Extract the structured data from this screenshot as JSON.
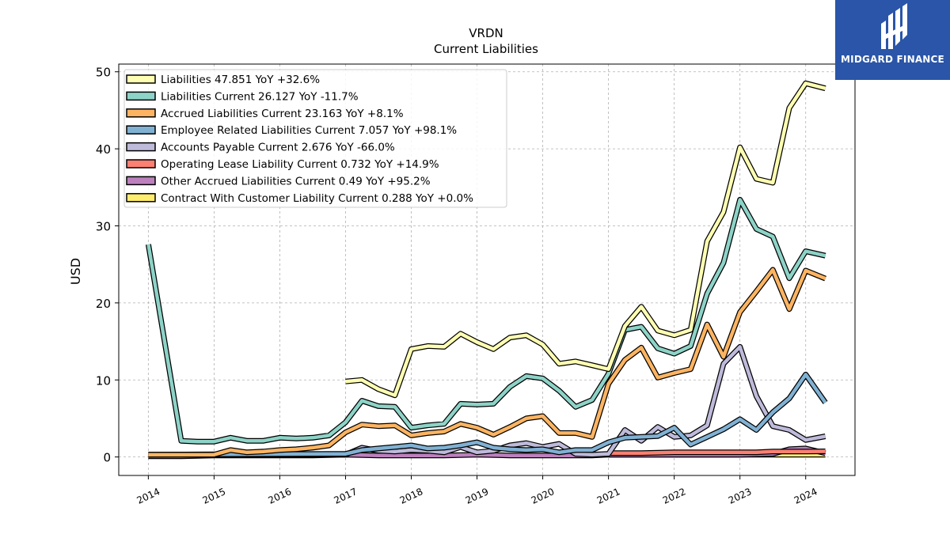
{
  "chart_data": {
    "type": "line",
    "title": "VRDN",
    "subtitle": "Current  Liabilities",
    "ylabel": "USD",
    "xlim": [
      2013.55,
      2024.75
    ],
    "ylim": [
      -2.4,
      51
    ],
    "yticks": [
      0,
      10,
      20,
      30,
      40,
      50
    ],
    "xticks": [
      "2014",
      "2015",
      "2016",
      "2017",
      "2018",
      "2019",
      "2020",
      "2021",
      "2022",
      "2023",
      "2024"
    ],
    "grid": true,
    "legend_position": "top-left",
    "series": [
      {
        "name": "Liabilities",
        "legend": "Liabilities  47.851 YoY +32.6%",
        "color": "#ffffb3",
        "points": [
          [
            2017.0,
            9.8
          ],
          [
            2017.25,
            10.0
          ],
          [
            2017.5,
            8.8
          ],
          [
            2017.75,
            8.0
          ],
          [
            2018.0,
            14.0
          ],
          [
            2018.25,
            14.4
          ],
          [
            2018.5,
            14.3
          ],
          [
            2018.75,
            16.0
          ],
          [
            2019.0,
            14.9
          ],
          [
            2019.25,
            14.0
          ],
          [
            2019.5,
            15.5
          ],
          [
            2019.75,
            15.8
          ],
          [
            2020.0,
            14.6
          ],
          [
            2020.25,
            12.1
          ],
          [
            2020.5,
            12.4
          ],
          [
            2020.75,
            11.9
          ],
          [
            2021.0,
            11.4
          ],
          [
            2021.25,
            17.0
          ],
          [
            2021.5,
            19.5
          ],
          [
            2021.75,
            16.4
          ],
          [
            2022.0,
            15.8
          ],
          [
            2022.25,
            16.5
          ],
          [
            2022.5,
            28.0
          ],
          [
            2022.75,
            31.8
          ],
          [
            2023.0,
            40.2
          ],
          [
            2023.25,
            36.1
          ],
          [
            2023.5,
            35.6
          ],
          [
            2023.75,
            45.3
          ],
          [
            2024.0,
            48.5
          ],
          [
            2024.3,
            47.85
          ]
        ]
      },
      {
        "name": "Liabilities Current",
        "legend": "Liabilities Current  26.127 YoY -11.7%",
        "color": "#8dd3c7",
        "points": [
          [
            2014.0,
            27.6
          ],
          [
            2014.5,
            2.1
          ],
          [
            2014.75,
            2.0
          ],
          [
            2015.0,
            2.0
          ],
          [
            2015.25,
            2.5
          ],
          [
            2015.5,
            2.1
          ],
          [
            2015.75,
            2.1
          ],
          [
            2016.0,
            2.5
          ],
          [
            2016.25,
            2.4
          ],
          [
            2016.5,
            2.5
          ],
          [
            2016.75,
            2.8
          ],
          [
            2017.0,
            4.5
          ],
          [
            2017.25,
            7.3
          ],
          [
            2017.5,
            6.6
          ],
          [
            2017.75,
            6.5
          ],
          [
            2018.0,
            3.8
          ],
          [
            2018.25,
            4.1
          ],
          [
            2018.5,
            4.3
          ],
          [
            2018.75,
            6.9
          ],
          [
            2019.0,
            6.8
          ],
          [
            2019.25,
            6.9
          ],
          [
            2019.5,
            9.1
          ],
          [
            2019.75,
            10.5
          ],
          [
            2020.0,
            10.2
          ],
          [
            2020.25,
            8.6
          ],
          [
            2020.5,
            6.5
          ],
          [
            2020.75,
            7.4
          ],
          [
            2021.0,
            10.8
          ],
          [
            2021.25,
            16.5
          ],
          [
            2021.5,
            16.9
          ],
          [
            2021.75,
            14.1
          ],
          [
            2022.0,
            13.4
          ],
          [
            2022.25,
            14.4
          ],
          [
            2022.5,
            21.2
          ],
          [
            2022.75,
            25.2
          ],
          [
            2023.0,
            33.4
          ],
          [
            2023.25,
            29.6
          ],
          [
            2023.5,
            28.6
          ],
          [
            2023.75,
            23.2
          ],
          [
            2024.0,
            26.7
          ],
          [
            2024.3,
            26.13
          ]
        ]
      },
      {
        "name": "Accrued Liabilities Current",
        "legend": "Accrued Liabilities Current  23.163 YoY +8.1%",
        "color": "#fdb462",
        "points": [
          [
            2014.0,
            0.3
          ],
          [
            2015.0,
            0.3
          ],
          [
            2015.25,
            0.9
          ],
          [
            2015.5,
            0.6
          ],
          [
            2015.75,
            0.7
          ],
          [
            2016.0,
            0.9
          ],
          [
            2016.25,
            1.0
          ],
          [
            2016.5,
            1.2
          ],
          [
            2016.75,
            1.5
          ],
          [
            2017.0,
            3.2
          ],
          [
            2017.25,
            4.2
          ],
          [
            2017.5,
            4.0
          ],
          [
            2017.75,
            4.1
          ],
          [
            2018.0,
            2.8
          ],
          [
            2018.25,
            3.1
          ],
          [
            2018.5,
            3.3
          ],
          [
            2018.75,
            4.3
          ],
          [
            2019.0,
            3.8
          ],
          [
            2019.25,
            2.9
          ],
          [
            2019.5,
            3.9
          ],
          [
            2019.75,
            5.0
          ],
          [
            2020.0,
            5.3
          ],
          [
            2020.25,
            3.1
          ],
          [
            2020.5,
            3.1
          ],
          [
            2020.75,
            2.6
          ],
          [
            2021.0,
            9.5
          ],
          [
            2021.25,
            12.6
          ],
          [
            2021.5,
            14.2
          ],
          [
            2021.75,
            10.3
          ],
          [
            2022.0,
            10.9
          ],
          [
            2022.25,
            11.4
          ],
          [
            2022.5,
            17.2
          ],
          [
            2022.75,
            13.0
          ],
          [
            2023.0,
            18.8
          ],
          [
            2023.25,
            21.5
          ],
          [
            2023.5,
            24.3
          ],
          [
            2023.75,
            19.2
          ],
          [
            2024.0,
            24.2
          ],
          [
            2024.3,
            23.16
          ]
        ]
      },
      {
        "name": "Employee Related Liabilities Current",
        "legend": "Employee Related Liabilities Current  7.057 YoY +98.1%",
        "color": "#80b1d3",
        "points": [
          [
            2014.0,
            0.3
          ],
          [
            2016.75,
            0.4
          ],
          [
            2017.0,
            0.4
          ],
          [
            2017.25,
            0.9
          ],
          [
            2017.5,
            1.1
          ],
          [
            2017.75,
            1.3
          ],
          [
            2018.0,
            1.5
          ],
          [
            2018.25,
            1.1
          ],
          [
            2018.5,
            1.2
          ],
          [
            2018.75,
            1.5
          ],
          [
            2019.0,
            1.9
          ],
          [
            2019.25,
            1.2
          ],
          [
            2019.5,
            1.0
          ],
          [
            2019.75,
            0.9
          ],
          [
            2020.0,
            1.0
          ],
          [
            2020.25,
            0.6
          ],
          [
            2020.5,
            0.9
          ],
          [
            2020.75,
            0.9
          ],
          [
            2021.0,
            1.9
          ],
          [
            2021.25,
            2.5
          ],
          [
            2021.5,
            2.6
          ],
          [
            2021.75,
            2.7
          ],
          [
            2022.0,
            3.8
          ],
          [
            2022.25,
            1.6
          ],
          [
            2022.5,
            2.6
          ],
          [
            2022.75,
            3.6
          ],
          [
            2023.0,
            4.9
          ],
          [
            2023.25,
            3.5
          ],
          [
            2023.5,
            5.8
          ],
          [
            2023.75,
            7.6
          ],
          [
            2024.0,
            10.7
          ],
          [
            2024.3,
            7.06
          ]
        ]
      },
      {
        "name": "Accounts Payable Current",
        "legend": "Accounts Payable Current  2.676 YoY -66.0%",
        "color": "#bebada",
        "points": [
          [
            2014.0,
            0.3
          ],
          [
            2016.75,
            0.3
          ],
          [
            2017.0,
            0.3
          ],
          [
            2017.25,
            1.2
          ],
          [
            2017.5,
            0.8
          ],
          [
            2017.75,
            0.7
          ],
          [
            2018.0,
            0.9
          ],
          [
            2018.25,
            0.8
          ],
          [
            2018.5,
            0.6
          ],
          [
            2018.75,
            1.3
          ],
          [
            2019.0,
            0.6
          ],
          [
            2019.25,
            0.8
          ],
          [
            2019.5,
            1.5
          ],
          [
            2019.75,
            1.8
          ],
          [
            2020.0,
            1.3
          ],
          [
            2020.25,
            1.7
          ],
          [
            2020.5,
            0.4
          ],
          [
            2020.75,
            0.3
          ],
          [
            2021.0,
            0.4
          ],
          [
            2021.25,
            3.5
          ],
          [
            2021.5,
            2.1
          ],
          [
            2021.75,
            3.9
          ],
          [
            2022.0,
            2.6
          ],
          [
            2022.25,
            2.8
          ],
          [
            2022.5,
            4.1
          ],
          [
            2022.75,
            12.1
          ],
          [
            2023.0,
            14.3
          ],
          [
            2023.25,
            7.9
          ],
          [
            2023.5,
            4.0
          ],
          [
            2023.75,
            3.5
          ],
          [
            2024.0,
            2.2
          ],
          [
            2024.3,
            2.68
          ]
        ]
      },
      {
        "name": "Operating Lease Liability Current",
        "legend": "Operating Lease Liability Current  0.732 YoY +14.9%",
        "color": "#fb8072",
        "points": [
          [
            2021.0,
            0.5
          ],
          [
            2021.5,
            0.5
          ],
          [
            2022.0,
            0.6
          ],
          [
            2022.5,
            0.6
          ],
          [
            2023.0,
            0.6
          ],
          [
            2023.25,
            0.6
          ],
          [
            2023.5,
            0.7
          ],
          [
            2023.75,
            0.7
          ],
          [
            2024.0,
            0.7
          ],
          [
            2024.3,
            0.73
          ]
        ]
      },
      {
        "name": "Other Accrued Liabilities Current",
        "legend": "Other Accrued Liabilities Current  0.49 YoY +95.2%",
        "color": "#bc80bd",
        "points": [
          [
            2014.0,
            0.1
          ],
          [
            2014.5,
            0.1
          ],
          [
            2015.0,
            0.2
          ],
          [
            2015.5,
            0.2
          ],
          [
            2016.0,
            0.2
          ],
          [
            2016.5,
            0.2
          ],
          [
            2017.0,
            0.3
          ],
          [
            2017.5,
            0.2
          ],
          [
            2018.0,
            0.2
          ],
          [
            2018.5,
            0.2
          ],
          [
            2019.0,
            0.3
          ],
          [
            2019.5,
            0.2
          ],
          [
            2020.0,
            0.2
          ],
          [
            2020.5,
            0.2
          ],
          [
            2020.75,
            0.2
          ],
          [
            2021.0,
            0.3
          ],
          [
            2021.5,
            0.3
          ],
          [
            2022.0,
            0.3
          ],
          [
            2022.5,
            0.3
          ],
          [
            2023.0,
            0.3
          ],
          [
            2023.5,
            0.4
          ],
          [
            2023.75,
            1.0
          ],
          [
            2024.0,
            1.1
          ],
          [
            2024.3,
            0.49
          ]
        ]
      },
      {
        "name": "Contract With Customer Liability Current",
        "legend": "Contract With Customer Liability Current  0.288 YoY +0.0%",
        "color": "#ffed6f",
        "points": [
          [
            2021.0,
            0.29
          ],
          [
            2021.5,
            0.29
          ],
          [
            2022.0,
            0.29
          ],
          [
            2022.5,
            0.29
          ],
          [
            2023.0,
            0.29
          ],
          [
            2023.5,
            0.29
          ],
          [
            2024.0,
            0.29
          ],
          [
            2024.3,
            0.288
          ]
        ]
      }
    ]
  },
  "logo": {
    "name": "MIDGARD FINANCE",
    "background": "#2a55a8"
  }
}
